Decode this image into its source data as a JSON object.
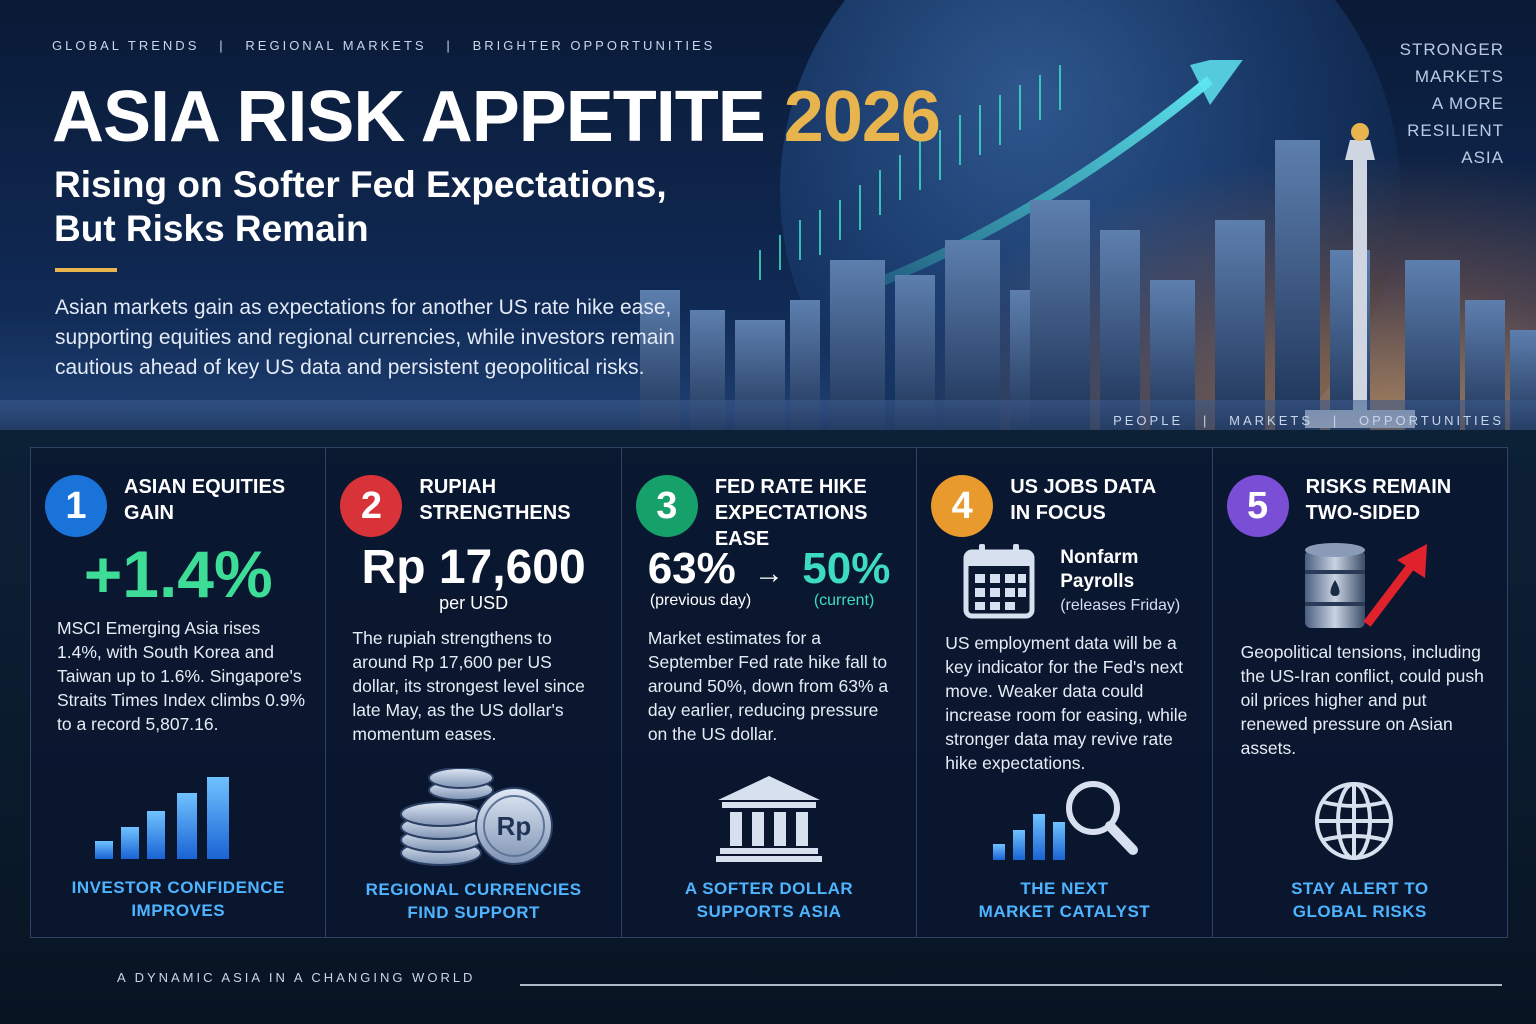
{
  "header": {
    "top_tag": "GLOBAL TRENDS   |   REGIONAL MARKETS   |   BRIGHTER OPPORTUNITIES",
    "title_main": "ASIA RISK APPETITE",
    "title_year": "2026",
    "subtitle_line1": "Rising on Softer Fed Expectations,",
    "subtitle_line2": "But Risks Remain",
    "intro": "Asian markets gain as expectations for another US rate hike ease, supporting equities and regional currencies, while investors remain cautious ahead of key US data and persistent geopolitical risks.",
    "right_tag_lines": [
      "STRONGER",
      "MARKETS",
      "A MORE",
      "RESILIENT",
      "ASIA"
    ],
    "people_tag": "PEOPLE   |   MARKETS   |   OPPORTUNITIES"
  },
  "cards": [
    {
      "number": "1",
      "color": "#1a73d9",
      "title_line1": "ASIAN EQUITIES",
      "title_line2": "GAIN",
      "big_value": "+1.4%",
      "big_color": "#3ddc97",
      "body": "MSCI Emerging Asia rises 1.4%, with South Korea and Taiwan up to 1.6%. Singapore's Straits Times Index climbs 0.9% to a record 5,807.16.",
      "icon": "bar-chart-icon",
      "caption_line1": "INVESTOR CONFIDENCE",
      "caption_line2": "IMPROVES"
    },
    {
      "number": "2",
      "color": "#d9333a",
      "title_line1": "RUPIAH",
      "title_line2": "STRENGTHENS",
      "big_value": "Rp 17,600",
      "big_sub": "per USD",
      "body": "The rupiah strengthens to around Rp 17,600 per US dollar, its strongest level since late May, as the US dollar's momentum eases.",
      "icon": "coins-icon",
      "coin_label": "Rp",
      "caption_line1": "REGIONAL CURRENCIES",
      "caption_line2": "FIND SUPPORT"
    },
    {
      "number": "3",
      "color": "#16a06a",
      "title_line1": "FED RATE HIKE",
      "title_line2": "EXPECTATIONS EASE",
      "from_value": "63%",
      "arrow": "→",
      "to_value": "50%",
      "from_label": "(previous day)",
      "to_label": "(current)",
      "body": "Market estimates for a September Fed rate hike fall to around 50%, down from 63% a day earlier, reducing pressure on the US dollar.",
      "icon": "bank-icon",
      "caption_line1": "A SOFTER DOLLAR",
      "caption_line2": "SUPPORTS ASIA"
    },
    {
      "number": "4",
      "color": "#e89a2c",
      "title_line1": "US JOBS DATA",
      "title_line2": "IN FOCUS",
      "event_line1": "Nonfarm",
      "event_line2": "Payrolls",
      "event_note": "(releases Friday)",
      "body": "US employment data will be a key indicator for the Fed's next move. Weaker data could increase room for easing, while stronger data may revive rate hike expectations.",
      "icon": "magnifier-chart-icon",
      "caption_line1": "THE NEXT",
      "caption_line2": "MARKET CATALYST"
    },
    {
      "number": "5",
      "color": "#7a4fd6",
      "title_line1": "RISKS REMAIN",
      "title_line2": "TWO-SIDED",
      "body": "Geopolitical tensions, including the US-Iran conflict, could push oil prices higher and put renewed pressure on Asian assets.",
      "icon": "globe-icon",
      "caption_line1": "STAY ALERT TO",
      "caption_line2": "GLOBAL RISKS"
    }
  ],
  "footer": {
    "tag": "A DYNAMIC ASIA IN A CHANGING WORLD"
  }
}
